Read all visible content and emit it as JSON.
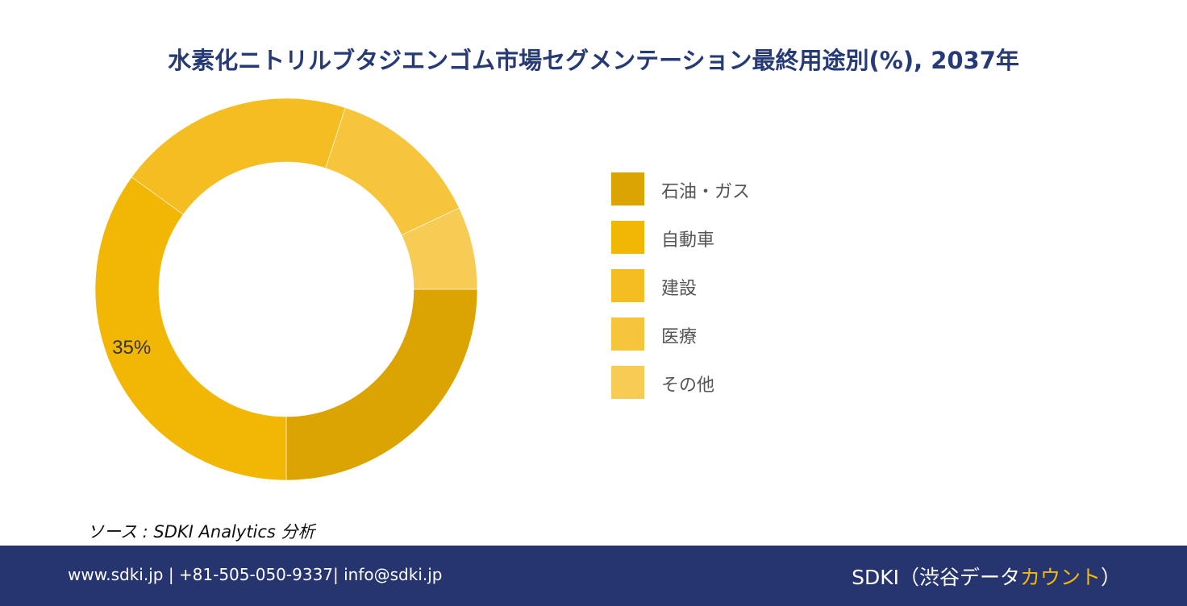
{
  "chart_data": {
    "type": "pie",
    "title": "水素化ニトリルブタジエンゴム市場セグメンテーション最終用途別(%), 2037年",
    "categories": [
      "石油・ガス",
      "自動車",
      "建設",
      "医療",
      "その他"
    ],
    "values": [
      25,
      35,
      20,
      13,
      7
    ],
    "colors": [
      "#dba403",
      "#f2b705",
      "#f4bd22",
      "#f6c53c",
      "#f7cc55"
    ],
    "data_labels": [
      "",
      "35%",
      "",
      "",
      ""
    ],
    "legend_position": "right",
    "donut": true
  },
  "source": "ソース : SDKI Analytics 分析",
  "footer": {
    "contact": "www.sdki.jp | +81-505-050-9337| info@sdki.jp",
    "brand_prefix": "SDKI（渋谷データ",
    "brand_accent": "カウント",
    "brand_suffix": "）"
  }
}
